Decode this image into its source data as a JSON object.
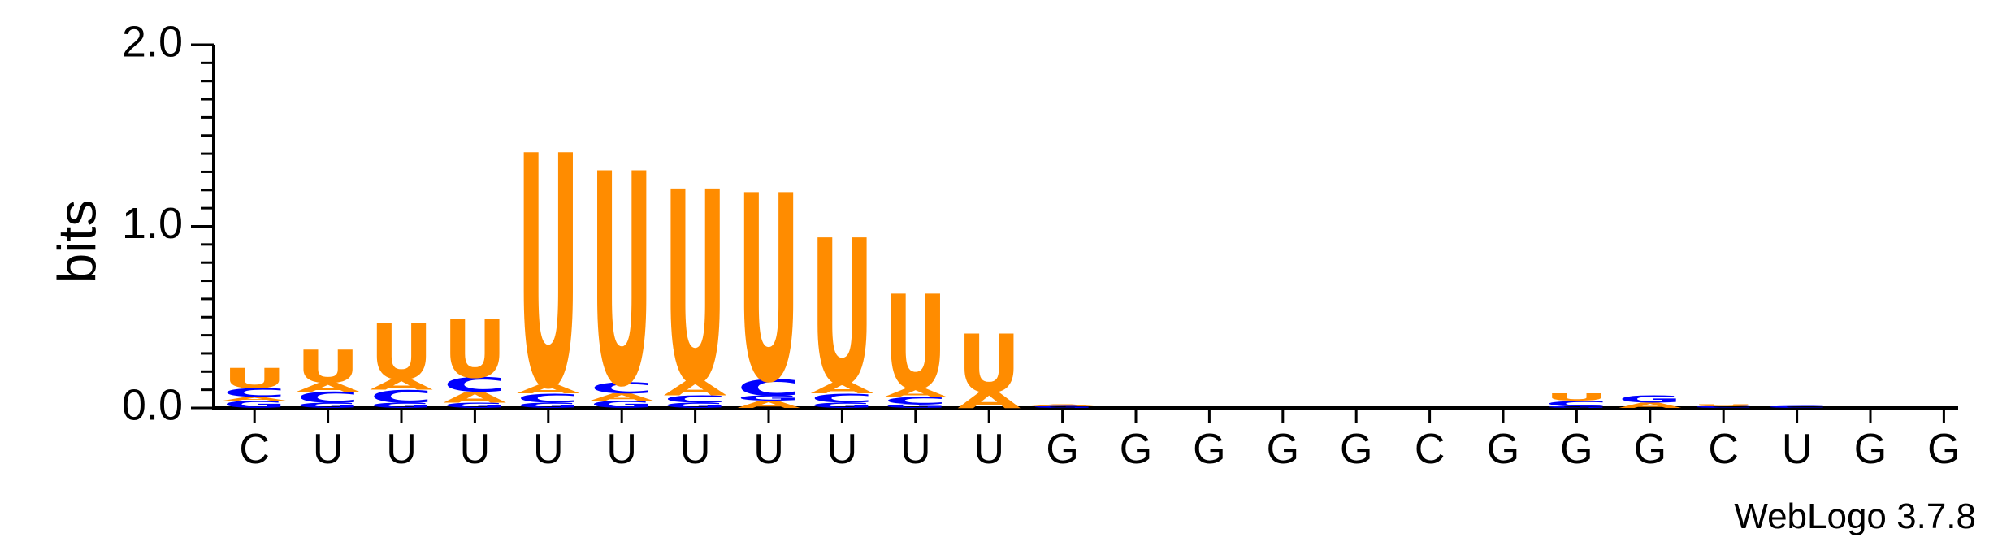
{
  "chart_data": {
    "type": "sequence-logo",
    "ylabel": "bits",
    "ylim": [
      0,
      2.0
    ],
    "yticks": [
      "0.0",
      "1.0",
      "2.0"
    ],
    "footer": "WebLogo 3.7.8",
    "colors": {
      "U": "#ff8c00",
      "A": "#ff8c00",
      "C": "#0000ff",
      "G": "#0000ff",
      "axis": "#000000"
    },
    "positions": [
      {
        "label": "C",
        "stack": [
          [
            "G",
            0.04
          ],
          [
            "A",
            0.02
          ],
          [
            "C",
            0.05
          ],
          [
            "U",
            0.11
          ]
        ]
      },
      {
        "label": "U",
        "stack": [
          [
            "G",
            0.03
          ],
          [
            "C",
            0.06
          ],
          [
            "A",
            0.05
          ],
          [
            "U",
            0.18
          ]
        ]
      },
      {
        "label": "U",
        "stack": [
          [
            "G",
            0.03
          ],
          [
            "C",
            0.07
          ],
          [
            "A",
            0.06
          ],
          [
            "U",
            0.31
          ]
        ]
      },
      {
        "label": "U",
        "stack": [
          [
            "G",
            0.03
          ],
          [
            "A",
            0.06
          ],
          [
            "C",
            0.08
          ],
          [
            "U",
            0.32
          ]
        ]
      },
      {
        "label": "U",
        "stack": [
          [
            "G",
            0.03
          ],
          [
            "C",
            0.05
          ],
          [
            "A",
            0.05
          ],
          [
            "U",
            1.28
          ]
        ]
      },
      {
        "label": "U",
        "stack": [
          [
            "G",
            0.04
          ],
          [
            "A",
            0.04
          ],
          [
            "C",
            0.06
          ],
          [
            "U",
            1.17
          ]
        ]
      },
      {
        "label": "U",
        "stack": [
          [
            "G",
            0.03
          ],
          [
            "C",
            0.04
          ],
          [
            "A",
            0.08
          ],
          [
            "U",
            1.06
          ]
        ]
      },
      {
        "label": "U",
        "stack": [
          [
            "A",
            0.04
          ],
          [
            "G",
            0.03
          ],
          [
            "C",
            0.09
          ],
          [
            "U",
            1.03
          ]
        ]
      },
      {
        "label": "U",
        "stack": [
          [
            "G",
            0.03
          ],
          [
            "C",
            0.05
          ],
          [
            "A",
            0.06
          ],
          [
            "U",
            0.8
          ]
        ]
      },
      {
        "label": "U",
        "stack": [
          [
            "G",
            0.02
          ],
          [
            "C",
            0.04
          ],
          [
            "A",
            0.05
          ],
          [
            "U",
            0.52
          ]
        ]
      },
      {
        "label": "U",
        "stack": [
          [
            "A",
            0.09
          ],
          [
            "U",
            0.32
          ]
        ]
      },
      {
        "label": "G",
        "stack": [
          [
            "G",
            0.01
          ],
          [
            "A",
            0.01
          ]
        ]
      },
      {
        "label": "G",
        "stack": []
      },
      {
        "label": "G",
        "stack": []
      },
      {
        "label": "G",
        "stack": []
      },
      {
        "label": "G",
        "stack": []
      },
      {
        "label": "C",
        "stack": []
      },
      {
        "label": "G",
        "stack": []
      },
      {
        "label": "G",
        "stack": [
          [
            "G",
            0.01
          ],
          [
            "C",
            0.03
          ],
          [
            "U",
            0.04
          ]
        ]
      },
      {
        "label": "G",
        "stack": [
          [
            "A",
            0.03
          ],
          [
            "G",
            0.04
          ]
        ]
      },
      {
        "label": "C",
        "stack": [
          [
            "C",
            0.01
          ],
          [
            "U",
            0.01
          ]
        ]
      },
      {
        "label": "U",
        "stack": [
          [
            "C",
            0.01
          ]
        ]
      },
      {
        "label": "G",
        "stack": []
      },
      {
        "label": "G",
        "stack": []
      }
    ]
  }
}
